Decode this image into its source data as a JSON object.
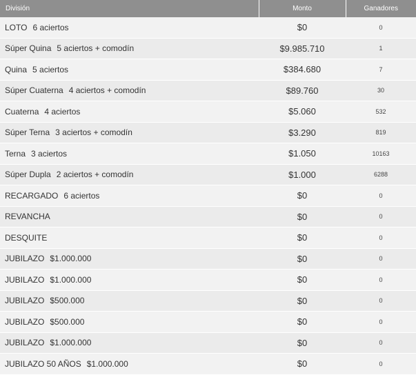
{
  "table": {
    "headers": {
      "division": "División",
      "monto": "Monto",
      "ganadores": "Ganadores"
    },
    "rows": [
      {
        "name": "LOTO",
        "detail": "6 aciertos",
        "monto": "$0",
        "ganadores": "0"
      },
      {
        "name": "Súper Quina",
        "detail": "5 aciertos + comodín",
        "monto": "$9.985.710",
        "ganadores": "1"
      },
      {
        "name": "Quina",
        "detail": "5 aciertos",
        "monto": "$384.680",
        "ganadores": "7"
      },
      {
        "name": "Súper Cuaterna",
        "detail": "4 aciertos + comodín",
        "monto": "$89.760",
        "ganadores": "30"
      },
      {
        "name": "Cuaterna",
        "detail": "4 aciertos",
        "monto": "$5.060",
        "ganadores": "532"
      },
      {
        "name": "Súper Terna",
        "detail": "3 aciertos + comodín",
        "monto": "$3.290",
        "ganadores": "819"
      },
      {
        "name": "Terna",
        "detail": "3 aciertos",
        "monto": "$1.050",
        "ganadores": "10163"
      },
      {
        "name": "Súper Dupla",
        "detail": "2 aciertos + comodín",
        "monto": "$1.000",
        "ganadores": "6288"
      },
      {
        "name": "RECARGADO",
        "detail": "6 aciertos",
        "monto": "$0",
        "ganadores": "0"
      },
      {
        "name": "REVANCHA",
        "detail": "",
        "monto": "$0",
        "ganadores": "0"
      },
      {
        "name": "DESQUITE",
        "detail": "",
        "monto": "$0",
        "ganadores": "0"
      },
      {
        "name": "JUBILAZO",
        "detail": "$1.000.000",
        "monto": "$0",
        "ganadores": "0"
      },
      {
        "name": "JUBILAZO",
        "detail": "$1.000.000",
        "monto": "$0",
        "ganadores": "0"
      },
      {
        "name": "JUBILAZO",
        "detail": "$500.000",
        "monto": "$0",
        "ganadores": "0"
      },
      {
        "name": "JUBILAZO",
        "detail": "$500.000",
        "monto": "$0",
        "ganadores": "0"
      },
      {
        "name": "JUBILAZO",
        "detail": "$1.000.000",
        "monto": "$0",
        "ganadores": "0"
      },
      {
        "name": "JUBILAZO 50 AÑOS",
        "detail": "$1.000.000",
        "monto": "$0",
        "ganadores": "0"
      }
    ]
  }
}
